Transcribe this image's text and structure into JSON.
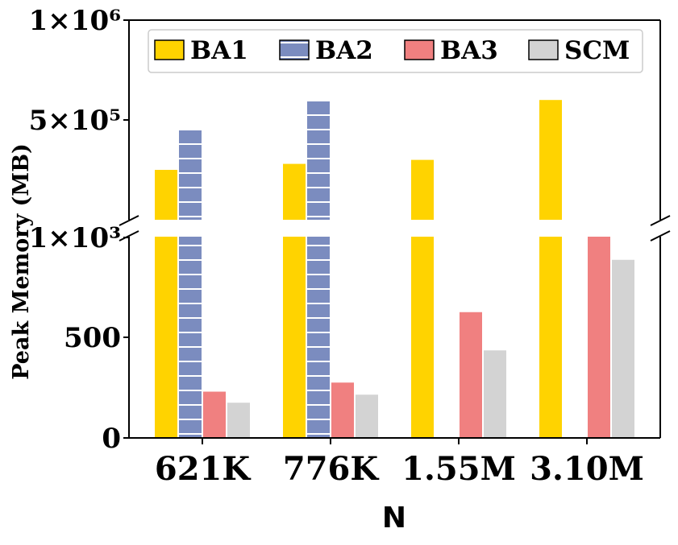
{
  "chart_data": {
    "type": "bar",
    "layout": "broken y-axis (two panels)",
    "xlabel": "N",
    "ylabel": "Peak Memory (MB)",
    "categories": [
      "621K",
      "776K",
      "1.55M",
      "3.10M"
    ],
    "upper_axis": {
      "ylim": [
        1000,
        1000000
      ],
      "ticks": [
        "1×10⁶",
        "5×10⁵",
        "1×10³"
      ]
    },
    "lower_axis": {
      "ylim": [
        0,
        1000
      ],
      "ticks": [
        "500",
        "0"
      ]
    },
    "series": [
      {
        "name": "BA1",
        "color": "#FFD300",
        "values": [
          250000,
          280000,
          300000,
          600000
        ]
      },
      {
        "name": "BA2",
        "color": "#7B8CBF",
        "hatch": "horizontal lines",
        "values": [
          450000,
          600000,
          null,
          null
        ]
      },
      {
        "name": "BA3",
        "color": "#F08080",
        "values": [
          230,
          275,
          625,
          1000
        ]
      },
      {
        "name": "SCM",
        "color": "#D3D3D3",
        "values": [
          175,
          215,
          435,
          885
        ]
      }
    ],
    "legend": {
      "position": "top",
      "columns": 4
    },
    "grid": false
  }
}
